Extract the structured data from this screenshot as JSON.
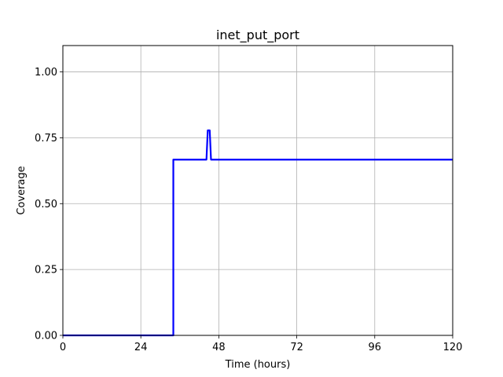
{
  "chart_data": {
    "type": "line",
    "title": "inet_put_port",
    "xlabel": "Time (hours)",
    "ylabel": "Coverage",
    "xlim": [
      0,
      120
    ],
    "ylim": [
      0,
      1.1
    ],
    "xticks": [
      0,
      24,
      48,
      72,
      96,
      120
    ],
    "yticks": [
      0.0,
      0.25,
      0.5,
      0.75,
      1.0
    ],
    "xtick_labels": [
      "0",
      "24",
      "48",
      "72",
      "96",
      "120"
    ],
    "ytick_labels": [
      "0.00",
      "0.25",
      "0.50",
      "0.75",
      "1.00"
    ],
    "grid": true,
    "series": [
      {
        "color": "#0000ff",
        "x": [
          0,
          34,
          34,
          44.2,
          44.6,
          45.2,
          45.6,
          120
        ],
        "y": [
          0,
          0,
          0.667,
          0.667,
          0.778,
          0.778,
          0.667,
          0.667
        ]
      }
    ]
  }
}
